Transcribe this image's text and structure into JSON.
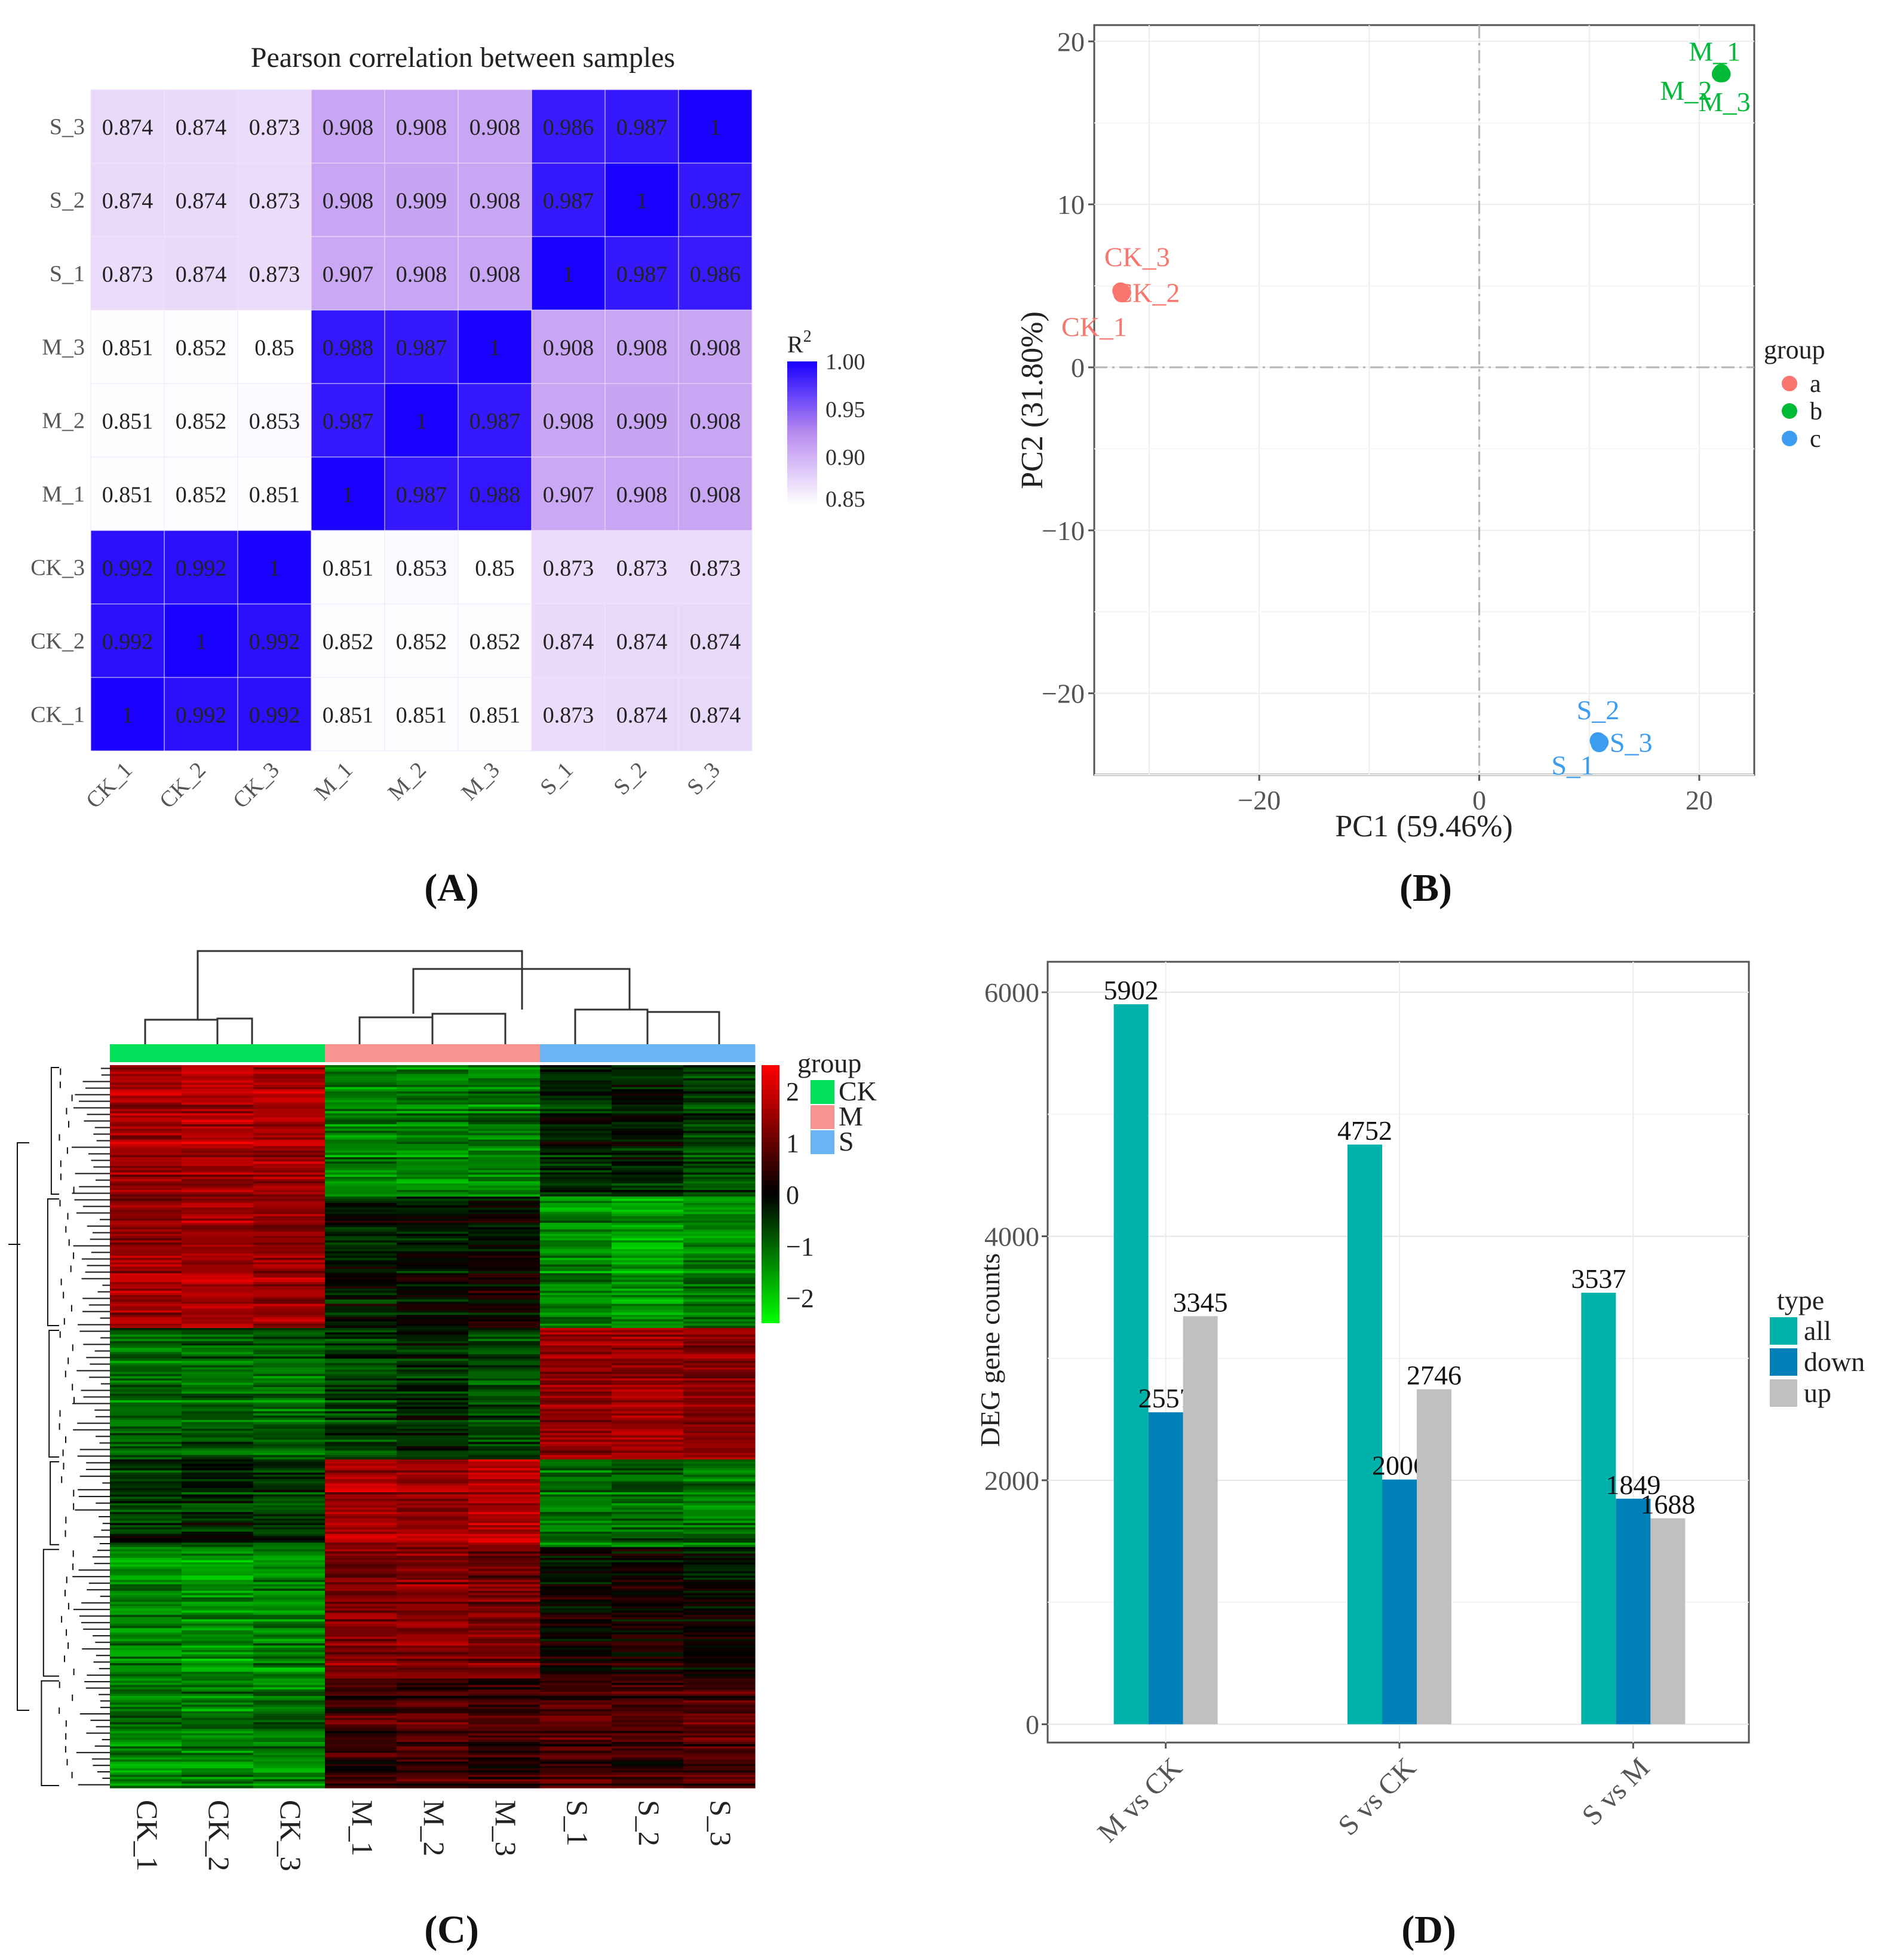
{
  "panels": {
    "A": "(A)",
    "B": "(B)",
    "C": "(C)",
    "D": "(D)"
  },
  "colors": {
    "corr_high": "#1a00ff",
    "corr_mid": "#b98cf0",
    "corr_low": "#ffffff",
    "group_a": "#f8766d",
    "group_b": "#00ba38",
    "group_c": "#3b9cf0",
    "heat_red": "#ff0000",
    "heat_black": "#000000",
    "heat_green": "#00ff00",
    "grp_CK": "#00e05a",
    "grp_M": "#f7948f",
    "grp_S": "#6ab4f4",
    "deg_all": "#00b2a9",
    "deg_down": "#0080b8",
    "deg_up": "#c0c0c0"
  },
  "chart_data": [
    {
      "type": "heatmap",
      "panel": "A",
      "title": "Pearson correlation between samples",
      "row_labels": [
        "S_3",
        "S_2",
        "S_1",
        "M_3",
        "M_2",
        "M_1",
        "CK_3",
        "CK_2",
        "CK_1"
      ],
      "col_labels": [
        "CK_1",
        "CK_2",
        "CK_3",
        "M_1",
        "M_2",
        "M_3",
        "S_1",
        "S_2",
        "S_3"
      ],
      "values": [
        [
          "0.874",
          "0.874",
          "0.873",
          "0.908",
          "0.908",
          "0.908",
          "0.986",
          "0.987",
          "1"
        ],
        [
          "0.874",
          "0.874",
          "0.873",
          "0.908",
          "0.909",
          "0.908",
          "0.987",
          "1",
          "0.987"
        ],
        [
          "0.873",
          "0.874",
          "0.873",
          "0.907",
          "0.908",
          "0.908",
          "1",
          "0.987",
          "0.986"
        ],
        [
          "0.851",
          "0.852",
          "0.85",
          "0.988",
          "0.987",
          "1",
          "0.908",
          "0.908",
          "0.908"
        ],
        [
          "0.851",
          "0.852",
          "0.853",
          "0.987",
          "1",
          "0.987",
          "0.908",
          "0.909",
          "0.908"
        ],
        [
          "0.851",
          "0.852",
          "0.851",
          "1",
          "0.987",
          "0.988",
          "0.907",
          "0.908",
          "0.908"
        ],
        [
          "0.992",
          "0.992",
          "1",
          "0.851",
          "0.853",
          "0.85",
          "0.873",
          "0.873",
          "0.873"
        ],
        [
          "0.992",
          "1",
          "0.992",
          "0.852",
          "0.852",
          "0.852",
          "0.874",
          "0.874",
          "0.874"
        ],
        [
          "1",
          "0.992",
          "0.992",
          "0.851",
          "0.851",
          "0.851",
          "0.873",
          "0.874",
          "0.874"
        ]
      ],
      "legend_title": "R",
      "legend_title_sup": "2",
      "legend_ticks": [
        "1.00",
        "0.95",
        "0.90",
        "0.85"
      ],
      "legend_range": [
        0.85,
        1.0
      ]
    },
    {
      "type": "scatter",
      "panel": "B",
      "xlabel": "PC1 (59.46%)",
      "ylabel": "PC2 (31.80%)",
      "xlim": [
        -35,
        25
      ],
      "ylim": [
        -25,
        21
      ],
      "xticks": [
        -20,
        0,
        20
      ],
      "xtick_labels": [
        "−20",
        "0",
        "20"
      ],
      "yticks": [
        20,
        10,
        0,
        -10,
        -20
      ],
      "ytick_labels": [
        "20",
        "10",
        "0",
        "−10",
        "−20"
      ],
      "legend_title": "group",
      "groups": [
        "a",
        "b",
        "c"
      ],
      "points": [
        {
          "label": "CK_1",
          "x": -32.5,
          "y": 4.5,
          "group": "a",
          "label_dx": -2.5,
          "label_dy": -2.0
        },
        {
          "label": "CK_2",
          "x": -32.4,
          "y": 4.6,
          "group": "a",
          "label_dx": 2.2,
          "label_dy": 0.0
        },
        {
          "label": "CK_3",
          "x": -32.6,
          "y": 4.7,
          "group": "a",
          "label_dx": 1.5,
          "label_dy": 2.1
        },
        {
          "label": "M_1",
          "x": 22.0,
          "y": 18.1,
          "group": "b",
          "label_dx": -0.6,
          "label_dy": 1.3
        },
        {
          "label": "M_2",
          "x": 21.9,
          "y": 18.0,
          "group": "b",
          "label_dx": -3.1,
          "label_dy": -1.0
        },
        {
          "label": "M_3",
          "x": 22.1,
          "y": 18.0,
          "group": "b",
          "label_dx": 0.2,
          "label_dy": -1.7
        },
        {
          "label": "S_1",
          "x": 10.9,
          "y": -23.1,
          "group": "c",
          "label_dx": -2.4,
          "label_dy": -1.3
        },
        {
          "label": "S_2",
          "x": 10.8,
          "y": -22.9,
          "group": "c",
          "label_dx": 0.0,
          "label_dy": 1.9
        },
        {
          "label": "S_3",
          "x": 11.0,
          "y": -23.0,
          "group": "c",
          "label_dx": 2.8,
          "label_dy": 0.0
        }
      ]
    },
    {
      "type": "heatmap",
      "panel": "C",
      "col_labels": [
        "CK_1",
        "CK_2",
        "CK_3",
        "M_1",
        "M_2",
        "M_3",
        "S_1",
        "S_2",
        "S_3"
      ],
      "col_groups": [
        "CK",
        "CK",
        "CK",
        "M",
        "M",
        "M",
        "S",
        "S",
        "S"
      ],
      "legend_title": "group",
      "group_names": [
        "CK",
        "M",
        "S"
      ],
      "scale_ticks": [
        "2",
        "1",
        "0",
        "−1",
        "−2"
      ],
      "scale_range": [
        -2.5,
        2.5
      ],
      "cluster_profiles": [
        {
          "rows": 60,
          "values": [
            1.6,
            1.7,
            1.6,
            -1.3,
            -1.3,
            -1.2,
            -0.4,
            -0.3,
            -0.6
          ]
        },
        {
          "rows": 60,
          "values": [
            1.5,
            1.6,
            1.5,
            -0.2,
            -0.1,
            0.1,
            -1.3,
            -1.5,
            -1.2
          ]
        },
        {
          "rows": 60,
          "values": [
            -1.1,
            -1.0,
            -1.1,
            -0.7,
            -0.5,
            -0.8,
            1.4,
            1.5,
            1.3
          ]
        },
        {
          "rows": 40,
          "values": [
            -0.5,
            -0.4,
            -0.5,
            1.6,
            1.5,
            1.7,
            -1.1,
            -1.0,
            -1.2
          ]
        },
        {
          "rows": 60,
          "values": [
            -1.3,
            -1.4,
            -1.3,
            1.3,
            1.4,
            1.2,
            0.1,
            0.2,
            0.0
          ]
        },
        {
          "rows": 50,
          "values": [
            -1.2,
            -1.3,
            -1.2,
            0.6,
            0.7,
            0.5,
            0.7,
            0.6,
            0.8
          ]
        }
      ]
    },
    {
      "type": "bar",
      "panel": "D",
      "ylabel": "DEG gene counts",
      "categories": [
        "M vs CK",
        "S vs CK",
        "S vs M"
      ],
      "series": [
        {
          "name": "all",
          "values": [
            5902,
            4752,
            3537
          ]
        },
        {
          "name": "down",
          "values": [
            2557,
            2006,
            1849
          ]
        },
        {
          "name": "up",
          "values": [
            3345,
            2746,
            1688
          ]
        }
      ],
      "ylim": [
        -150,
        6250
      ],
      "yticks": [
        0,
        2000,
        4000,
        6000
      ],
      "legend_title": "type"
    }
  ]
}
